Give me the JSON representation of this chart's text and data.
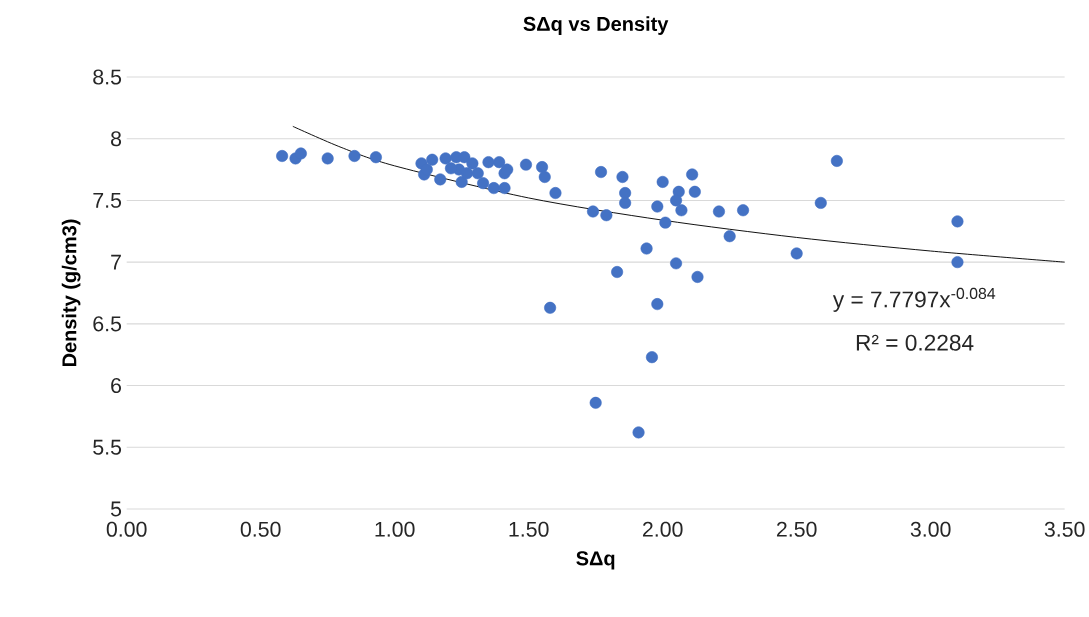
{
  "chart_data": {
    "type": "scatter",
    "title": "SΔq vs  Density",
    "xlabel": "SΔq",
    "ylabel": "Density (g/cm3)",
    "xlim": [
      0,
      3.5
    ],
    "xticks": [
      {
        "value": 0,
        "label": "0.00"
      },
      {
        "value": 0.5,
        "label": "0.50"
      },
      {
        "value": 1,
        "label": "1.00"
      },
      {
        "value": 1.5,
        "label": "1.50"
      },
      {
        "value": 2,
        "label": "2.00"
      },
      {
        "value": 2.5,
        "label": "2.50"
      },
      {
        "value": 3,
        "label": "3.00"
      },
      {
        "value": 3.5,
        "label": "3.50"
      }
    ],
    "ylim": [
      5,
      8.5
    ],
    "yticks": [
      5,
      5.5,
      6,
      6.5,
      7,
      7.5,
      8,
      8.5
    ],
    "grid": "y",
    "legend": false,
    "marker": "circle",
    "annotations": [
      "y = 7.7797x$^{-0.084}$",
      "R² = 0.2284"
    ],
    "series": [
      {
        "type": "scatter",
        "color": "#4472c4",
        "x": [
          0.58,
          0.63,
          0.65,
          0.75,
          0.85,
          0.93,
          1.1,
          1.11,
          1.17,
          1.14,
          1.19,
          1.23,
          1.26,
          1.24,
          1.25,
          1.29,
          1.33,
          1.35,
          1.37,
          1.39,
          1.41,
          1.42,
          1.41,
          1.21,
          1.27,
          1.31,
          1.12,
          1.49,
          1.55,
          1.56,
          1.6,
          1.77,
          1.85,
          2.0,
          2.11,
          1.86,
          1.86,
          2.06,
          2.12,
          2.05,
          2.07,
          1.98,
          1.74,
          1.79,
          2.01,
          2.21,
          2.3,
          2.25,
          1.94,
          2.59,
          2.65,
          2.05,
          1.83,
          2.13,
          2.5,
          1.58,
          1.98,
          1.96,
          1.75,
          1.91,
          3.1,
          3.1
        ],
        "values": [
          7.86,
          7.84,
          7.88,
          7.84,
          7.86,
          7.85,
          7.8,
          7.71,
          7.67,
          7.83,
          7.84,
          7.85,
          7.85,
          7.75,
          7.65,
          7.8,
          7.64,
          7.81,
          7.6,
          7.81,
          7.72,
          7.75,
          7.6,
          7.76,
          7.72,
          7.72,
          7.75,
          7.79,
          7.77,
          7.69,
          7.56,
          7.73,
          7.69,
          7.65,
          7.71,
          7.56,
          7.48,
          7.57,
          7.57,
          7.5,
          7.42,
          7.45,
          7.41,
          7.38,
          7.32,
          7.41,
          7.42,
          7.21,
          7.11,
          7.48,
          7.82,
          6.99,
          6.92,
          6.88,
          7.07,
          6.63,
          6.66,
          6.23,
          5.86,
          5.62,
          7.33,
          7.0
        ]
      },
      {
        "type": "line",
        "color": "#000000",
        "marker": "none",
        "x": [
          0.62,
          0.8,
          1.0,
          1.5,
          2.0,
          2.5,
          3.0,
          3.5
        ],
        "values": [
          8.1,
          7.93,
          7.78,
          7.52,
          7.34,
          7.2,
          7.09,
          7.0
        ]
      }
    ]
  }
}
